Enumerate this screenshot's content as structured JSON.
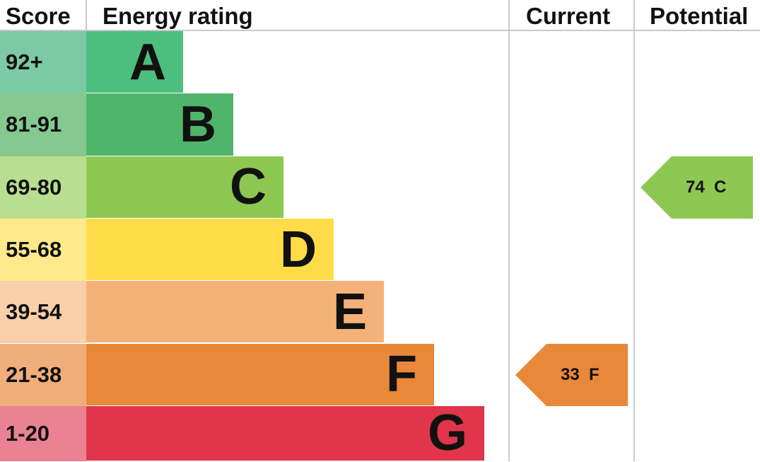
{
  "chart_data": {
    "type": "bar",
    "headers": {
      "score": "Score",
      "rating": "Energy rating",
      "current": "Current",
      "potential": "Potential"
    },
    "bands": [
      {
        "letter": "A",
        "score": "92+",
        "color": "#4cbf7f",
        "score_color": "#7cc9a6"
      },
      {
        "letter": "B",
        "score": "81-91",
        "color": "#4fb56a",
        "score_color": "#86c990"
      },
      {
        "letter": "C",
        "score": "69-80",
        "color": "#8dc852",
        "score_color": "#b8df90"
      },
      {
        "letter": "D",
        "score": "55-68",
        "color": "#fedc47",
        "score_color": "#fee98a"
      },
      {
        "letter": "E",
        "score": "39-54",
        "color": "#f5b278",
        "score_color": "#f9cfaa"
      },
      {
        "letter": "F",
        "score": "21-38",
        "color": "#e98838",
        "score_color": "#f0ae7a"
      },
      {
        "letter": "G",
        "score": "1-20",
        "color": "#e0354a",
        "score_color": "#ea8293"
      }
    ],
    "current": {
      "value": 33,
      "band": "F",
      "label": "33  F",
      "color": "#e98838"
    },
    "potential": {
      "value": 74,
      "band": "C",
      "label": "74  C",
      "color": "#8dc852"
    }
  }
}
